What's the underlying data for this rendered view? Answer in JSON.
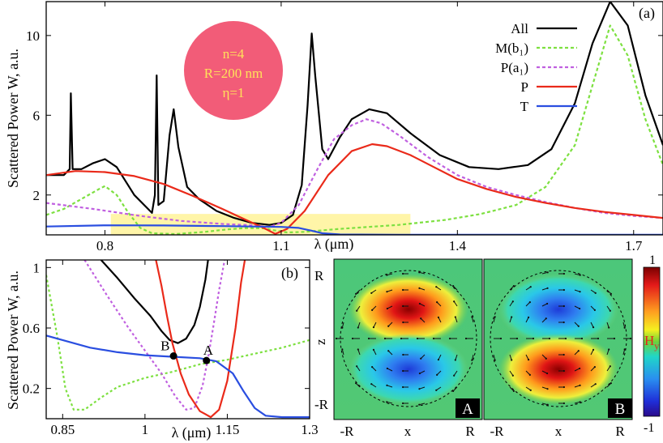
{
  "chart_data": [
    {
      "panel": "(a)",
      "type": "line",
      "xlabel": "λ (μm)",
      "ylabel": "Scattered Power W, a.u.",
      "xlim": [
        0.7,
        1.75
      ],
      "ylim": [
        0,
        11.7
      ],
      "xticks": [
        "0.8",
        "1.1",
        "1.4",
        "1.7"
      ],
      "yticks": [
        "2",
        "6",
        "10"
      ],
      "badge": {
        "line1": "n=4",
        "line2": "R=200 nm",
        "line3": "η=1",
        "color": "#f25c78",
        "text_color": "#ffe25a"
      },
      "highlight": {
        "x": [
          0.81,
          1.32
        ],
        "y": [
          0,
          1.05
        ],
        "color": "#fff5a8"
      },
      "series": [
        {
          "name": "All",
          "color": "#000000",
          "dash": "solid",
          "points": [
            [
              0.7,
              3.0
            ],
            [
              0.73,
              3.0
            ],
            [
              0.74,
              3.3
            ],
            [
              0.742,
              7.1
            ],
            [
              0.745,
              3.3
            ],
            [
              0.76,
              3.3
            ],
            [
              0.78,
              3.6
            ],
            [
              0.8,
              3.8
            ],
            [
              0.82,
              3.4
            ],
            [
              0.85,
              2.0
            ],
            [
              0.87,
              1.4
            ],
            [
              0.88,
              1.1
            ],
            [
              0.885,
              2.0
            ],
            [
              0.888,
              8.0
            ],
            [
              0.891,
              1.5
            ],
            [
              0.9,
              1.7
            ],
            [
              0.91,
              5.0
            ],
            [
              0.917,
              6.3
            ],
            [
              0.925,
              4.4
            ],
            [
              0.94,
              2.4
            ],
            [
              0.96,
              1.8
            ],
            [
              0.99,
              1.2
            ],
            [
              1.02,
              0.85
            ],
            [
              1.05,
              0.6
            ],
            [
              1.08,
              0.5
            ],
            [
              1.1,
              0.6
            ],
            [
              1.12,
              1.0
            ],
            [
              1.135,
              2.5
            ],
            [
              1.145,
              6.5
            ],
            [
              1.152,
              10.1
            ],
            [
              1.158,
              8.0
            ],
            [
              1.17,
              4.3
            ],
            [
              1.18,
              3.8
            ],
            [
              1.2,
              4.9
            ],
            [
              1.22,
              5.8
            ],
            [
              1.25,
              6.3
            ],
            [
              1.28,
              6.1
            ],
            [
              1.32,
              5.1
            ],
            [
              1.37,
              4.0
            ],
            [
              1.42,
              3.4
            ],
            [
              1.47,
              3.3
            ],
            [
              1.52,
              3.5
            ],
            [
              1.56,
              4.3
            ],
            [
              1.6,
              6.6
            ],
            [
              1.63,
              9.6
            ],
            [
              1.66,
              11.7
            ],
            [
              1.69,
              10.5
            ],
            [
              1.72,
              7.0
            ],
            [
              1.75,
              4.5
            ]
          ]
        },
        {
          "name": "M(b₁)",
          "color": "#7de040",
          "dash": "4,3",
          "points": [
            [
              0.7,
              1.0
            ],
            [
              0.73,
              1.3
            ],
            [
              0.76,
              1.8
            ],
            [
              0.79,
              2.3
            ],
            [
              0.8,
              2.45
            ],
            [
              0.82,
              2.0
            ],
            [
              0.84,
              1.1
            ],
            [
              0.86,
              0.35
            ],
            [
              0.88,
              0.08
            ],
            [
              0.92,
              0.04
            ],
            [
              0.97,
              0.15
            ],
            [
              1.01,
              0.28
            ],
            [
              1.04,
              0.34
            ],
            [
              1.07,
              0.33
            ],
            [
              1.09,
              0.22
            ],
            [
              1.11,
              0.12
            ],
            [
              1.14,
              0.15
            ],
            [
              1.2,
              0.3
            ],
            [
              1.3,
              0.5
            ],
            [
              1.38,
              0.75
            ],
            [
              1.44,
              1.05
            ],
            [
              1.5,
              1.5
            ],
            [
              1.55,
              2.4
            ],
            [
              1.6,
              4.5
            ],
            [
              1.63,
              7.5
            ],
            [
              1.66,
              10.5
            ],
            [
              1.69,
              9.0
            ],
            [
              1.72,
              5.8
            ],
            [
              1.75,
              3.5
            ]
          ]
        },
        {
          "name": "P(a₁)",
          "color": "#c060e0",
          "dash": "4,3",
          "points": [
            [
              0.7,
              1.6
            ],
            [
              0.78,
              1.3
            ],
            [
              0.86,
              0.95
            ],
            [
              0.93,
              0.7
            ],
            [
              1.0,
              0.55
            ],
            [
              1.05,
              0.48
            ],
            [
              1.08,
              0.4
            ],
            [
              1.1,
              0.6
            ],
            [
              1.13,
              1.5
            ],
            [
              1.16,
              3.2
            ],
            [
              1.19,
              4.8
            ],
            [
              1.22,
              5.5
            ],
            [
              1.245,
              5.8
            ],
            [
              1.27,
              5.6
            ],
            [
              1.3,
              5.0
            ],
            [
              1.35,
              3.9
            ],
            [
              1.4,
              3.0
            ],
            [
              1.45,
              2.4
            ],
            [
              1.5,
              2.0
            ],
            [
              1.55,
              1.65
            ],
            [
              1.6,
              1.35
            ],
            [
              1.65,
              1.1
            ],
            [
              1.7,
              0.95
            ],
            [
              1.75,
              0.85
            ]
          ]
        },
        {
          "name": "P",
          "color": "#ea2a1a",
          "dash": "solid",
          "points": [
            [
              0.7,
              3.0
            ],
            [
              0.75,
              3.2
            ],
            [
              0.8,
              3.15
            ],
            [
              0.85,
              2.95
            ],
            [
              0.9,
              2.55
            ],
            [
              0.95,
              1.95
            ],
            [
              1.0,
              1.3
            ],
            [
              1.04,
              0.75
            ],
            [
              1.07,
              0.35
            ],
            [
              1.09,
              0.05
            ],
            [
              1.11,
              0.3
            ],
            [
              1.14,
              1.2
            ],
            [
              1.18,
              3.0
            ],
            [
              1.22,
              4.2
            ],
            [
              1.255,
              4.55
            ],
            [
              1.28,
              4.45
            ],
            [
              1.32,
              4.0
            ],
            [
              1.36,
              3.4
            ],
            [
              1.4,
              2.8
            ],
            [
              1.45,
              2.3
            ],
            [
              1.5,
              1.9
            ],
            [
              1.55,
              1.6
            ],
            [
              1.6,
              1.35
            ],
            [
              1.65,
              1.15
            ],
            [
              1.7,
              1.0
            ],
            [
              1.75,
              0.85
            ]
          ]
        },
        {
          "name": "T",
          "color": "#2a4ee0",
          "dash": "solid",
          "points": [
            [
              0.7,
              0.42
            ],
            [
              0.8,
              0.48
            ],
            [
              0.9,
              0.47
            ],
            [
              1.0,
              0.44
            ],
            [
              1.05,
              0.42
            ],
            [
              1.1,
              0.4
            ],
            [
              1.13,
              0.35
            ],
            [
              1.15,
              0.22
            ],
            [
              1.17,
              0.08
            ],
            [
              1.2,
              0.02
            ],
            [
              1.3,
              0.01
            ],
            [
              1.75,
              0.01
            ]
          ]
        }
      ]
    },
    {
      "panel": "(b)",
      "type": "line",
      "xlabel": "λ (μm)",
      "ylabel": "Scattered Power W, a.u.",
      "xlim": [
        0.82,
        1.3
      ],
      "ylim": [
        0,
        1.05
      ],
      "xticks": [
        "0.85",
        "1",
        "1.15",
        "1.3"
      ],
      "yticks": [
        "0.2",
        "0.6",
        "1"
      ],
      "markers": [
        {
          "label": "B",
          "x": 1.052,
          "y": 0.415
        },
        {
          "label": "A",
          "x": 1.112,
          "y": 0.385
        }
      ],
      "series": [
        {
          "name": "All",
          "color": "#000000",
          "dash": "solid",
          "points": [
            [
              0.92,
              1.05
            ],
            [
              0.95,
              0.93
            ],
            [
              0.98,
              0.8
            ],
            [
              1.01,
              0.68
            ],
            [
              1.03,
              0.58
            ],
            [
              1.045,
              0.52
            ],
            [
              1.06,
              0.5
            ],
            [
              1.075,
              0.53
            ],
            [
              1.09,
              0.62
            ],
            [
              1.1,
              0.74
            ],
            [
              1.11,
              0.92
            ],
            [
              1.115,
              1.05
            ]
          ]
        },
        {
          "name": "M(b₁)",
          "color": "#7de040",
          "dash": "3,3",
          "points": [
            [
              0.82,
              0.95
            ],
            [
              0.84,
              0.55
            ],
            [
              0.855,
              0.2
            ],
            [
              0.87,
              0.06
            ],
            [
              0.89,
              0.06
            ],
            [
              0.92,
              0.14
            ],
            [
              0.95,
              0.21
            ],
            [
              1.0,
              0.27
            ],
            [
              1.05,
              0.31
            ],
            [
              1.1,
              0.36
            ],
            [
              1.15,
              0.39
            ],
            [
              1.2,
              0.43
            ],
            [
              1.25,
              0.47
            ],
            [
              1.3,
              0.52
            ]
          ]
        },
        {
          "name": "P(a₁)",
          "color": "#c060e0",
          "dash": "3,3",
          "points": [
            [
              0.89,
              1.05
            ],
            [
              0.93,
              0.82
            ],
            [
              0.97,
              0.6
            ],
            [
              1.0,
              0.45
            ],
            [
              1.03,
              0.3
            ],
            [
              1.055,
              0.15
            ],
            [
              1.075,
              0.06
            ],
            [
              1.09,
              0.07
            ],
            [
              1.105,
              0.22
            ],
            [
              1.115,
              0.4
            ],
            [
              1.125,
              0.62
            ],
            [
              1.135,
              0.85
            ],
            [
              1.145,
              1.05
            ]
          ]
        },
        {
          "name": "P",
          "color": "#ea2a1a",
          "dash": "solid",
          "points": [
            [
              1.02,
              1.05
            ],
            [
              1.03,
              0.88
            ],
            [
              1.04,
              0.68
            ],
            [
              1.05,
              0.5
            ],
            [
              1.065,
              0.3
            ],
            [
              1.08,
              0.16
            ],
            [
              1.1,
              0.05
            ],
            [
              1.12,
              0.01
            ],
            [
              1.135,
              0.06
            ],
            [
              1.15,
              0.25
            ],
            [
              1.165,
              0.6
            ],
            [
              1.175,
              0.9
            ],
            [
              1.182,
              1.05
            ]
          ]
        },
        {
          "name": "T",
          "color": "#2a4ee0",
          "dash": "solid",
          "points": [
            [
              0.82,
              0.55
            ],
            [
              0.85,
              0.52
            ],
            [
              0.9,
              0.47
            ],
            [
              0.95,
              0.44
            ],
            [
              1.0,
              0.42
            ],
            [
              1.05,
              0.41
            ],
            [
              1.1,
              0.4
            ],
            [
              1.13,
              0.38
            ],
            [
              1.16,
              0.3
            ],
            [
              1.18,
              0.18
            ],
            [
              1.2,
              0.07
            ],
            [
              1.22,
              0.02
            ],
            [
              1.25,
              0.01
            ],
            [
              1.3,
              0.01
            ]
          ]
        }
      ]
    }
  ],
  "fields": {
    "panels": [
      {
        "label": "A",
        "top": "positive",
        "bottom": "negative"
      },
      {
        "label": "B",
        "top": "negative",
        "bottom": "positive"
      }
    ],
    "xtick_left": "-R",
    "xtick_mid": "x",
    "xtick_right": "R",
    "ytick_top": "R",
    "ytick_mid": "z",
    "ytick_bottom": "-R",
    "colorbar_max": "1",
    "colorbar_min": "-1",
    "colorbar_label": "H",
    "colorbar_sub": "y",
    "colorbar_color": "#e6231b"
  }
}
